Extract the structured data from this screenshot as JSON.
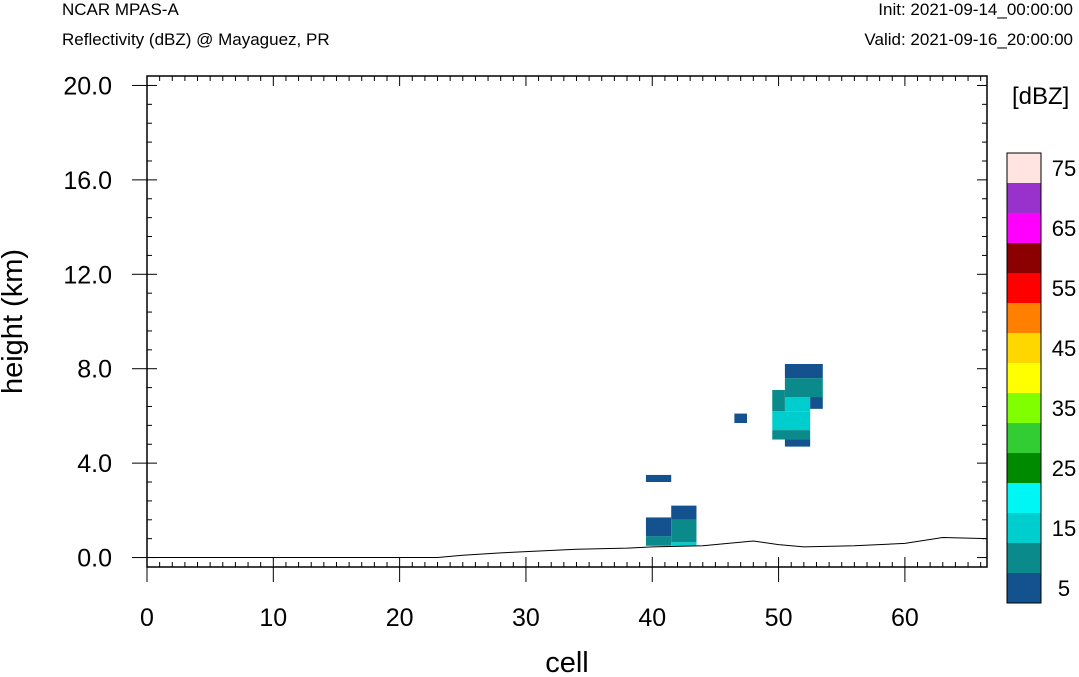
{
  "header": {
    "model": "NCAR MPAS-A",
    "field": "Reflectivity (dBZ) @ Mayaguez, PR",
    "init": "Init: 2021-09-14_00:00:00",
    "valid": "Valid: 2021-09-16_20:00:00"
  },
  "chart_data": {
    "type": "heatmap",
    "xlabel": "cell",
    "ylabel": "height (km)",
    "xlim": [
      0,
      66.5
    ],
    "ylim": [
      -0.4,
      20.4
    ],
    "xticks": [
      "0",
      "10",
      "20",
      "30",
      "40",
      "50",
      "60"
    ],
    "yticks": [
      "0.0",
      "4.0",
      "8.0",
      "12.0",
      "16.0",
      "20.0"
    ],
    "colorbar": {
      "unit": "[dBZ]",
      "levels": [
        5,
        10,
        15,
        20,
        25,
        30,
        35,
        40,
        45,
        50,
        55,
        60,
        65,
        70,
        75
      ],
      "colors": [
        "#13528f",
        "#0a8a8a",
        "#00cdcd",
        "#00f5f5",
        "#008a00",
        "#32cd32",
        "#7fff00",
        "#ffff00",
        "#ffd700",
        "#ff7f00",
        "#ff0000",
        "#8b0000",
        "#ff00ff",
        "#9932cc",
        "#ffe4e1"
      ],
      "tick_labels": [
        "5",
        "15",
        "25",
        "35",
        "45",
        "55",
        "65",
        "75"
      ]
    },
    "terrain": [
      [
        0,
        0
      ],
      [
        23,
        0
      ],
      [
        25,
        0.1
      ],
      [
        28,
        0.2
      ],
      [
        30,
        0.25
      ],
      [
        34,
        0.35
      ],
      [
        38,
        0.4
      ],
      [
        40,
        0.45
      ],
      [
        44,
        0.5
      ],
      [
        48,
        0.7
      ],
      [
        50,
        0.55
      ],
      [
        52,
        0.45
      ],
      [
        56,
        0.5
      ],
      [
        60,
        0.6
      ],
      [
        63,
        0.85
      ],
      [
        66.5,
        0.8
      ]
    ],
    "cells": [
      {
        "x0": 39.5,
        "x1": 41.5,
        "y0": 0.5,
        "y1": 0.9,
        "dbz": 10
      },
      {
        "x0": 39.5,
        "x1": 41.5,
        "y0": 0.9,
        "y1": 1.7,
        "dbz": 5
      },
      {
        "x0": 41.5,
        "x1": 43.5,
        "y0": 0.5,
        "y1": 0.65,
        "dbz": 15
      },
      {
        "x0": 41.5,
        "x1": 43.5,
        "y0": 0.65,
        "y1": 1.6,
        "dbz": 10
      },
      {
        "x0": 41.5,
        "x1": 43.5,
        "y0": 1.6,
        "y1": 2.2,
        "dbz": 5
      },
      {
        "x0": 39.5,
        "x1": 41.5,
        "y0": 3.2,
        "y1": 3.5,
        "dbz": 5
      },
      {
        "x0": 46.5,
        "x1": 47.5,
        "y0": 5.7,
        "y1": 6.1,
        "dbz": 5
      },
      {
        "x0": 50.5,
        "x1": 52.5,
        "y0": 4.7,
        "y1": 5.0,
        "dbz": 5
      },
      {
        "x0": 49.5,
        "x1": 52.5,
        "y0": 5.0,
        "y1": 5.4,
        "dbz": 10
      },
      {
        "x0": 49.5,
        "x1": 52.5,
        "y0": 5.4,
        "y1": 6.2,
        "dbz": 15
      },
      {
        "x0": 50.5,
        "x1": 52.5,
        "y0": 6.2,
        "y1": 6.8,
        "dbz": 15
      },
      {
        "x0": 49.5,
        "x1": 50.5,
        "y0": 6.2,
        "y1": 7.1,
        "dbz": 10
      },
      {
        "x0": 50.5,
        "x1": 53.5,
        "y0": 6.8,
        "y1": 7.6,
        "dbz": 10
      },
      {
        "x0": 52.5,
        "x1": 53.5,
        "y0": 6.3,
        "y1": 6.8,
        "dbz": 5
      },
      {
        "x0": 50.5,
        "x1": 53.5,
        "y0": 7.6,
        "y1": 8.2,
        "dbz": 5
      }
    ]
  }
}
